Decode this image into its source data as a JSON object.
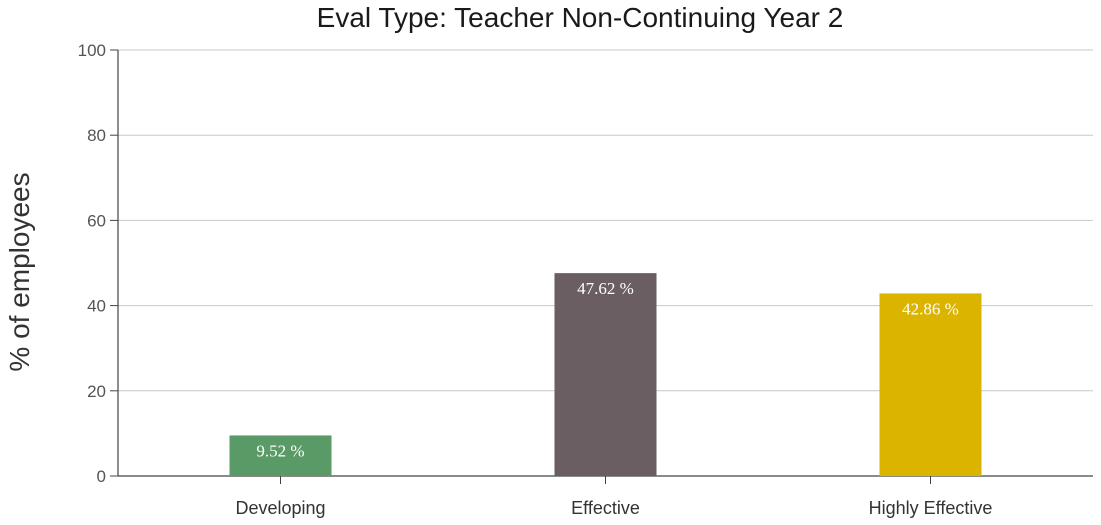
{
  "chart_data": {
    "type": "bar",
    "title": "Eval Type: Teacher Non-Continuing Year 2",
    "xlabel": "",
    "ylabel": "% of employees",
    "ylim": [
      0,
      100
    ],
    "yticks": [
      0,
      20,
      40,
      60,
      80,
      100
    ],
    "grid": true,
    "categories": [
      "Developing",
      "Effective",
      "Highly Effective"
    ],
    "values": [
      9.52,
      47.62,
      42.86
    ],
    "data_labels": [
      "9.52 %",
      "47.62 %",
      "42.86 %"
    ],
    "colors": [
      "#5a9a66",
      "#6a5e62",
      "#dbb400"
    ]
  }
}
